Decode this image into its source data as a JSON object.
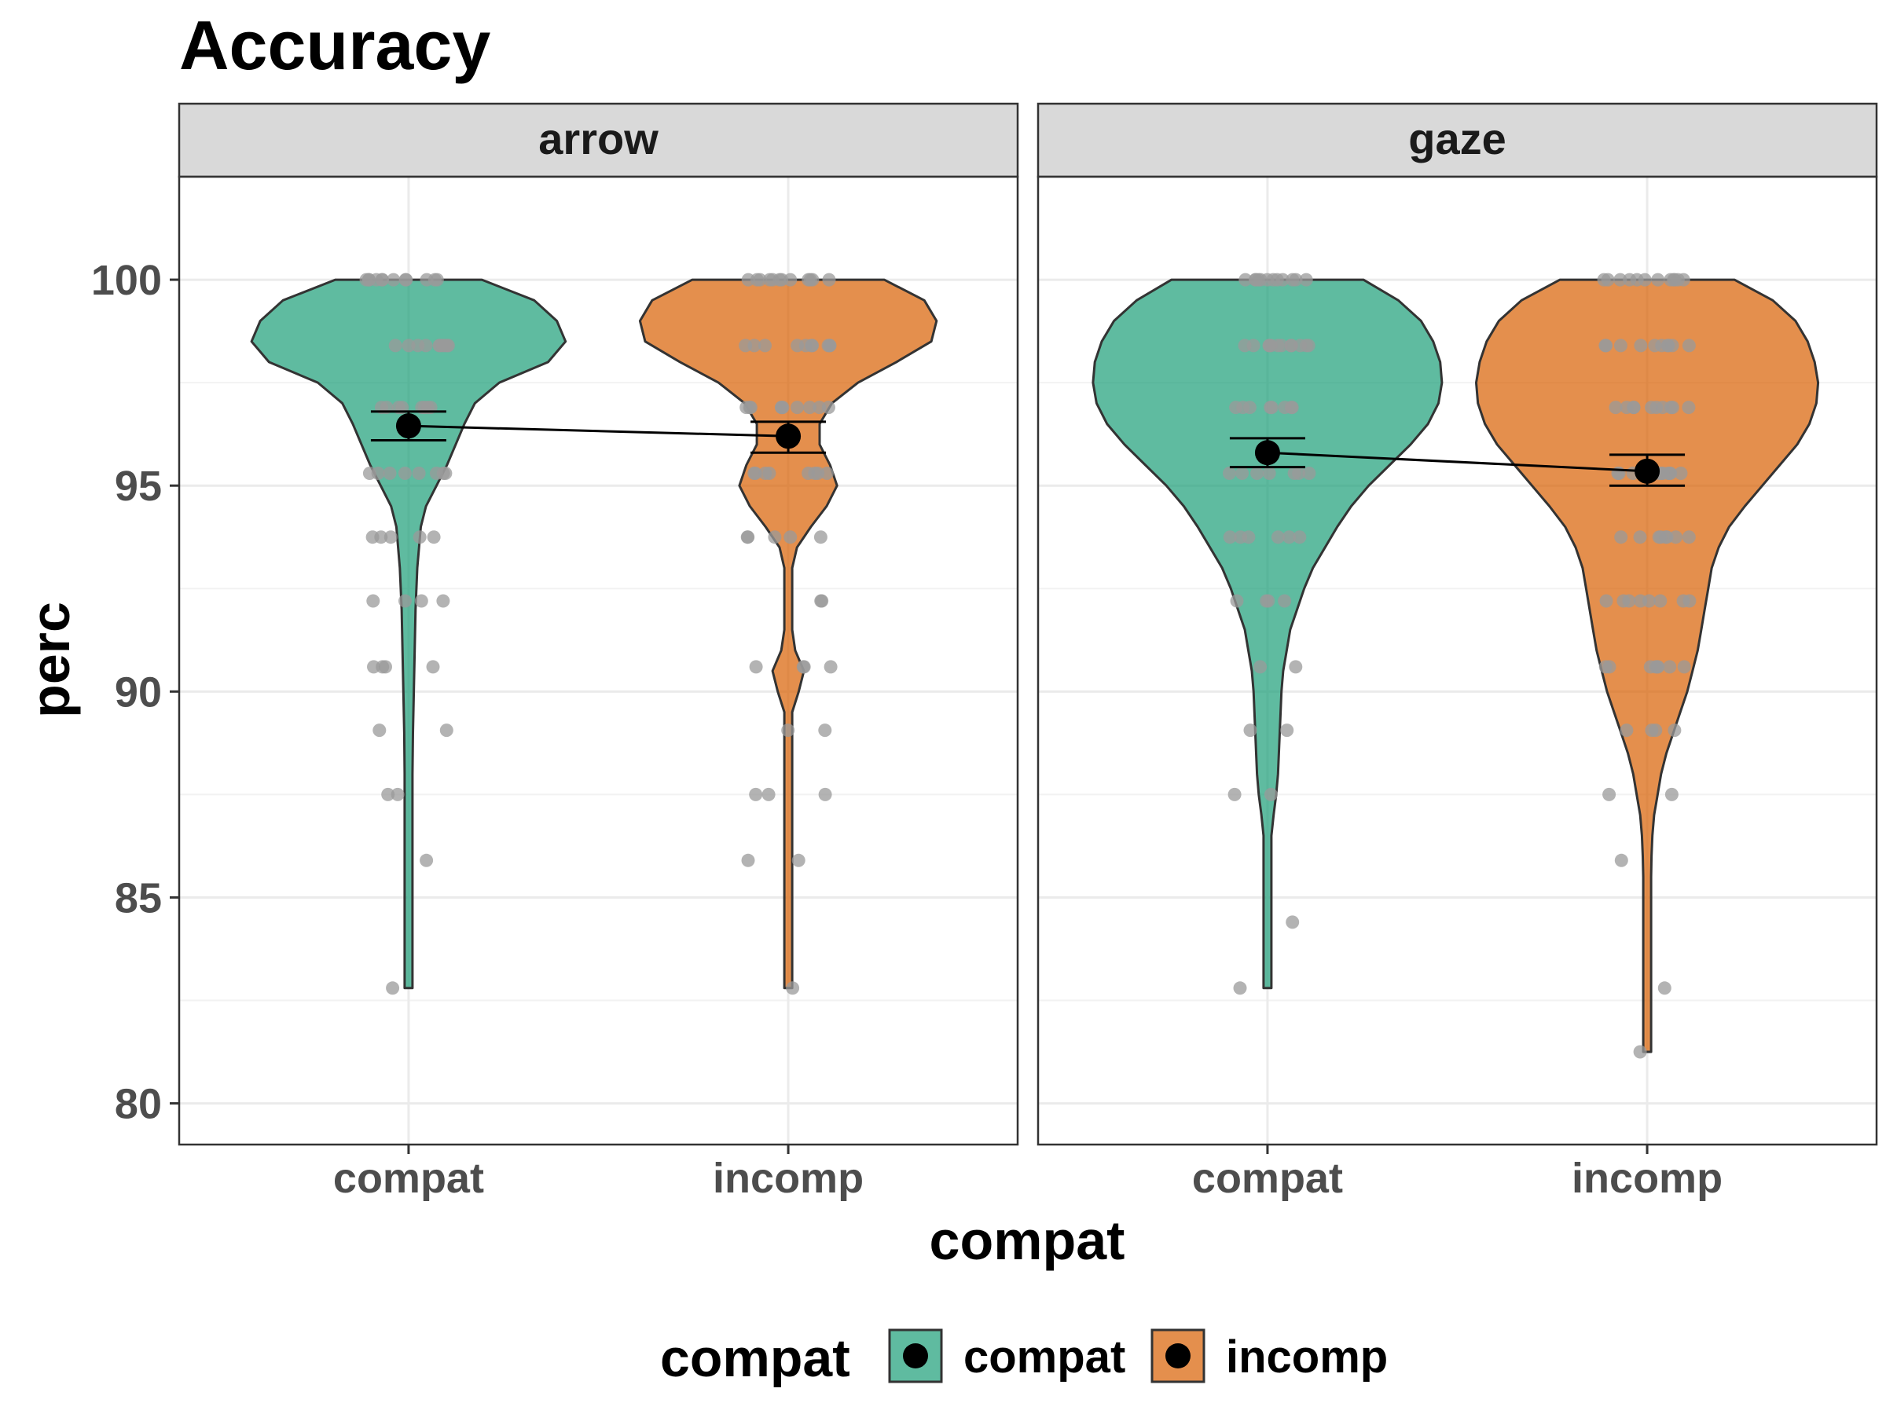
{
  "chart_data": {
    "type": "violin",
    "title": "Accuracy",
    "xlabel": "compat",
    "ylabel": "perc",
    "ylim": [
      79,
      102.5
    ],
    "yticks": [
      80,
      85,
      90,
      95,
      100
    ],
    "categories": [
      "compat",
      "incomp"
    ],
    "facets": [
      "arrow",
      "gaze"
    ],
    "legend": {
      "title": "compat",
      "position": "bottom",
      "entries": [
        {
          "label": "compat",
          "color": "#1b9e77"
        },
        {
          "label": "incomp",
          "color": "#d95f02"
        }
      ]
    },
    "grid": true,
    "series": [
      {
        "facet": "arrow",
        "category": "compat",
        "mean": 96.45,
        "ci": [
          96.1,
          96.8
        ],
        "violin": {
          "min": 82.8,
          "max": 100,
          "profile": [
            [
              100,
              0.42
            ],
            [
              99.5,
              0.72
            ],
            [
              99,
              0.85
            ],
            [
              98.5,
              0.9
            ],
            [
              98,
              0.8
            ],
            [
              97.5,
              0.52
            ],
            [
              97,
              0.38
            ],
            [
              96.5,
              0.32
            ],
            [
              96,
              0.27
            ],
            [
              95.5,
              0.22
            ],
            [
              95,
              0.16
            ],
            [
              94.5,
              0.1
            ],
            [
              94,
              0.07
            ],
            [
              93,
              0.05
            ],
            [
              92,
              0.04
            ],
            [
              91,
              0.035
            ],
            [
              90,
              0.03
            ],
            [
              89,
              0.025
            ],
            [
              88,
              0.02
            ],
            [
              87,
              0.015
            ],
            [
              86,
              0.01
            ],
            [
              85,
              0.005
            ],
            [
              84,
              0.003
            ],
            [
              83.5,
              0.004
            ],
            [
              82.8,
              0.006
            ]
          ]
        },
        "points": [
          [
            82.8,
            1
          ],
          [
            85.9,
            1
          ],
          [
            87.5,
            2
          ],
          [
            89.06,
            2
          ],
          [
            90.6,
            4
          ],
          [
            92.2,
            4
          ],
          [
            93.75,
            5
          ],
          [
            95.3,
            8
          ],
          [
            96.9,
            8
          ],
          [
            98.4,
            10
          ],
          [
            100,
            12
          ]
        ]
      },
      {
        "facet": "arrow",
        "category": "incomp",
        "mean": 96.2,
        "ci": [
          95.8,
          96.55
        ],
        "violin": {
          "min": 82.8,
          "max": 100,
          "profile": [
            [
              100,
              0.55
            ],
            [
              99.5,
              0.78
            ],
            [
              99,
              0.85
            ],
            [
              98.5,
              0.82
            ],
            [
              98,
              0.62
            ],
            [
              97.5,
              0.4
            ],
            [
              97,
              0.25
            ],
            [
              96.5,
              0.18
            ],
            [
              96,
              0.18
            ],
            [
              95.5,
              0.24
            ],
            [
              95,
              0.28
            ],
            [
              94.5,
              0.22
            ],
            [
              94,
              0.13
            ],
            [
              93.5,
              0.05
            ],
            [
              93,
              -0.01
            ],
            [
              92.5,
              -0.06
            ],
            [
              92,
              -0.06
            ],
            [
              91.5,
              -0.02
            ],
            [
              91,
              0.04
            ],
            [
              90.5,
              0.09
            ],
            [
              90,
              0.06
            ],
            [
              89.5,
              0.0
            ],
            [
              89,
              -0.03
            ],
            [
              88.5,
              -0.02
            ],
            [
              88,
              0.0
            ],
            [
              87.5,
              0.01
            ],
            [
              87,
              0.01
            ],
            [
              86.5,
              0.0
            ],
            [
              86,
              -0.01
            ],
            [
              85.5,
              -0.02
            ],
            [
              85,
              -0.02
            ],
            [
              84.5,
              -0.01
            ],
            [
              84,
              0.0
            ],
            [
              83.5,
              0.0
            ],
            [
              82.8,
              0.01
            ]
          ],
          "asym": true
        },
        "points": [
          [
            82.8,
            1
          ],
          [
            85.9,
            2
          ],
          [
            87.5,
            3
          ],
          [
            89.06,
            2
          ],
          [
            90.6,
            4
          ],
          [
            92.2,
            2
          ],
          [
            93.75,
            5
          ],
          [
            95.3,
            8
          ],
          [
            96.9,
            10
          ],
          [
            98.4,
            10
          ],
          [
            100,
            12
          ]
        ]
      },
      {
        "facet": "gaze",
        "category": "compat",
        "mean": 95.8,
        "ci": [
          95.45,
          96.15
        ],
        "violin": {
          "min": 82.8,
          "max": 100,
          "profile": [
            [
              100,
              0.55
            ],
            [
              99.5,
              0.75
            ],
            [
              99,
              0.88
            ],
            [
              98.5,
              0.95
            ],
            [
              98,
              0.99
            ],
            [
              97.5,
              1.0
            ],
            [
              97,
              0.98
            ],
            [
              96.5,
              0.92
            ],
            [
              96,
              0.82
            ],
            [
              95.5,
              0.7
            ],
            [
              95,
              0.58
            ],
            [
              94.5,
              0.48
            ],
            [
              94,
              0.4
            ],
            [
              93.5,
              0.33
            ],
            [
              93,
              0.26
            ],
            [
              92.5,
              0.21
            ],
            [
              92,
              0.17
            ],
            [
              91.5,
              0.13
            ],
            [
              91,
              0.11
            ],
            [
              90.5,
              0.09
            ],
            [
              90,
              0.08
            ],
            [
              89.5,
              0.075
            ],
            [
              89,
              0.07
            ],
            [
              88.5,
              0.065
            ],
            [
              88,
              0.06
            ],
            [
              87.5,
              0.05
            ],
            [
              87,
              0.035
            ],
            [
              86.5,
              0.022
            ],
            [
              86,
              0.015
            ],
            [
              85.5,
              0.01
            ],
            [
              85,
              0.007
            ],
            [
              84,
              0.004
            ],
            [
              83.5,
              0.004
            ],
            [
              82.8,
              0.006
            ]
          ]
        },
        "points": [
          [
            82.8,
            1
          ],
          [
            84.4,
            1
          ],
          [
            87.5,
            2
          ],
          [
            89.06,
            2
          ],
          [
            90.6,
            2
          ],
          [
            92.2,
            4
          ],
          [
            93.75,
            6
          ],
          [
            95.3,
            7
          ],
          [
            96.9,
            8
          ],
          [
            98.4,
            12
          ],
          [
            100,
            12
          ]
        ]
      },
      {
        "facet": "gaze",
        "category": "incomp",
        "mean": 95.35,
        "ci": [
          95.0,
          95.75
        ],
        "violin": {
          "min": 81.25,
          "max": 100,
          "profile": [
            [
              100,
              0.5
            ],
            [
              99.5,
              0.72
            ],
            [
              99,
              0.85
            ],
            [
              98.5,
              0.92
            ],
            [
              98,
              0.96
            ],
            [
              97.5,
              0.98
            ],
            [
              97,
              0.97
            ],
            [
              96.5,
              0.93
            ],
            [
              96,
              0.86
            ],
            [
              95.5,
              0.76
            ],
            [
              95,
              0.66
            ],
            [
              94.5,
              0.56
            ],
            [
              94,
              0.47
            ],
            [
              93.5,
              0.41
            ],
            [
              93,
              0.37
            ],
            [
              92.5,
              0.35
            ],
            [
              92,
              0.33
            ],
            [
              91.5,
              0.31
            ],
            [
              91,
              0.29
            ],
            [
              90.5,
              0.26
            ],
            [
              90,
              0.23
            ],
            [
              89.5,
              0.19
            ],
            [
              89,
              0.15
            ],
            [
              88.5,
              0.11
            ],
            [
              88,
              0.08
            ],
            [
              87.5,
              0.06
            ],
            [
              87,
              0.04
            ],
            [
              86.5,
              0.03
            ],
            [
              86,
              0.025
            ],
            [
              85.5,
              0.02
            ],
            [
              85,
              0.016
            ],
            [
              84.5,
              0.013
            ],
            [
              84,
              0.011
            ],
            [
              83,
              0.011
            ],
            [
              82,
              0.012
            ],
            [
              81.25,
              0.013
            ]
          ]
        },
        "points": [
          [
            81.25,
            1
          ],
          [
            82.8,
            1
          ],
          [
            85.9,
            1
          ],
          [
            87.5,
            2
          ],
          [
            89.06,
            4
          ],
          [
            90.6,
            8
          ],
          [
            92.2,
            8
          ],
          [
            93.75,
            8
          ],
          [
            95.3,
            10
          ],
          [
            96.9,
            10
          ],
          [
            98.4,
            10
          ],
          [
            100,
            12
          ]
        ]
      }
    ]
  }
}
